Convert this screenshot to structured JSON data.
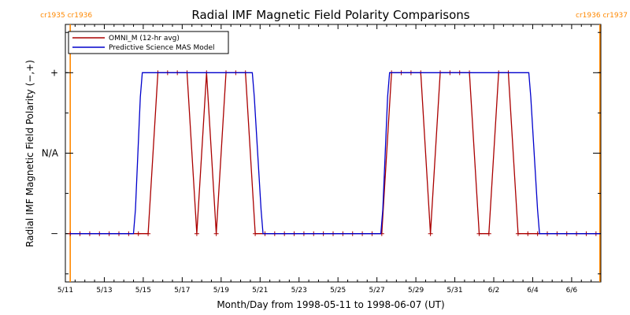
{
  "chart_data": {
    "type": "line",
    "title": "Radial IMF Magnetic Field Polarity Comparisons",
    "xlabel": "Month/Day from 1998-05-11 to 1998-06-07 (UT)",
    "ylabel": "Radial IMF Magnetic Field Polarity (−,+)",
    "x_start": "1998-05-11",
    "x_end": "1998-06-07",
    "xlim_days": [
      0,
      27.5
    ],
    "ylim": [
      -1.6,
      1.6
    ],
    "x_ticks": [
      {
        "day": 0,
        "label": "5/11"
      },
      {
        "day": 2,
        "label": "5/13"
      },
      {
        "day": 4,
        "label": "5/15"
      },
      {
        "day": 6,
        "label": "5/17"
      },
      {
        "day": 8,
        "label": "5/19"
      },
      {
        "day": 10,
        "label": "5/21"
      },
      {
        "day": 12,
        "label": "5/23"
      },
      {
        "day": 14,
        "label": "5/25"
      },
      {
        "day": 16,
        "label": "5/27"
      },
      {
        "day": 18,
        "label": "5/29"
      },
      {
        "day": 20,
        "label": "5/31"
      },
      {
        "day": 22,
        "label": "6/2"
      },
      {
        "day": 24,
        "label": "6/4"
      },
      {
        "day": 26,
        "label": "6/6"
      }
    ],
    "y_ticks": [
      {
        "value": 1,
        "label": "+"
      },
      {
        "value": 0,
        "label": "N/A"
      },
      {
        "value": -1,
        "label": "−"
      }
    ],
    "carrington_markers": [
      {
        "day": 0.25,
        "labels": [
          "cr1935",
          "cr1936"
        ],
        "label_side": "left"
      },
      {
        "day": 27.45,
        "labels": [
          "cr1936",
          "cr1937"
        ],
        "label_side": "right"
      }
    ],
    "legend_position": "top-left",
    "series": [
      {
        "name": "OMNI_M (12-hr avg)",
        "color": "#aa0000",
        "marker": "+",
        "x": [
          0.25,
          0.75,
          1.25,
          1.75,
          2.25,
          2.75,
          3.25,
          3.75,
          4.25,
          4.75,
          5.25,
          5.75,
          6.25,
          6.75,
          7.25,
          7.75,
          8.25,
          8.75,
          9.25,
          9.75,
          10.25,
          10.75,
          11.25,
          11.75,
          12.25,
          12.75,
          13.25,
          13.75,
          14.25,
          14.75,
          15.25,
          15.75,
          16.25,
          16.75,
          17.25,
          17.75,
          18.25,
          18.75,
          19.25,
          19.75,
          20.25,
          20.75,
          21.25,
          21.75,
          22.25,
          22.75,
          23.25,
          23.75,
          24.25,
          24.75,
          25.25,
          25.75,
          26.25,
          26.75,
          27.25
        ],
        "y": [
          -1,
          -1,
          -1,
          -1,
          -1,
          -1,
          -1,
          -1,
          -1,
          1,
          1,
          1,
          1,
          -1,
          1,
          -1,
          1,
          1,
          1,
          -1,
          -1,
          -1,
          -1,
          -1,
          -1,
          -1,
          -1,
          -1,
          -1,
          -1,
          -1,
          -1,
          -1,
          1,
          1,
          1,
          1,
          -1,
          1,
          1,
          1,
          1,
          -1,
          -1,
          1,
          1,
          -1,
          -1,
          -1,
          -1,
          -1,
          -1,
          -1,
          -1,
          -1
        ]
      },
      {
        "name": "Predictive Science MAS Model",
        "color": "#0000cc",
        "marker": "none",
        "x": [
          0.25,
          3.5,
          3.6,
          3.85,
          3.95,
          9.6,
          9.7,
          10.05,
          10.15,
          16.2,
          16.3,
          16.55,
          16.65,
          23.8,
          23.9,
          24.25,
          24.35,
          27.45
        ],
        "y": [
          -1,
          -1,
          -0.7,
          0.7,
          1,
          1,
          0.7,
          -0.7,
          -1,
          -1,
          -0.7,
          0.7,
          1,
          1,
          0.7,
          -0.7,
          -1,
          -1
        ]
      }
    ]
  }
}
